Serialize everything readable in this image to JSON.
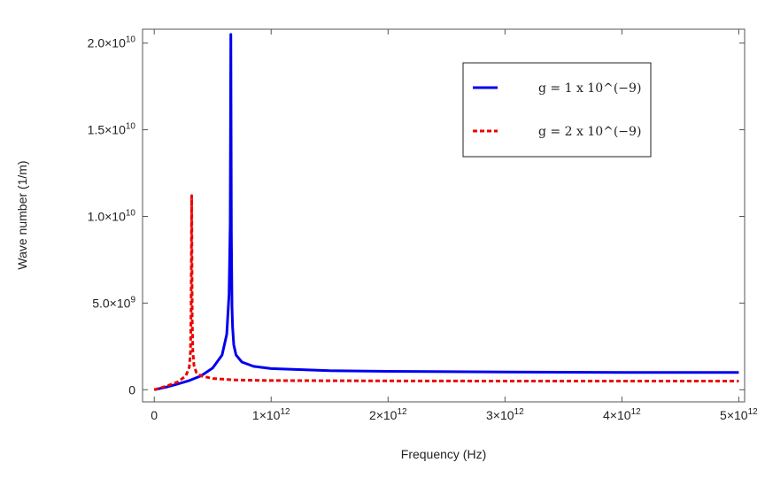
{
  "chart_data": {
    "type": "line",
    "xlabel": "Frequency (Hz)",
    "ylabel": "Wave number (1/m)",
    "xlim": [
      -100000000000.0,
      5050000000000.0
    ],
    "ylim": [
      -700000000.0,
      20800000000.0
    ],
    "x_ticks": [
      {
        "value": 0,
        "label": "0"
      },
      {
        "value": 1000000000000.0,
        "label": "1×10",
        "exp": "12"
      },
      {
        "value": 2000000000000.0,
        "label": "2×10",
        "exp": "12"
      },
      {
        "value": 3000000000000.0,
        "label": "3×10",
        "exp": "12"
      },
      {
        "value": 4000000000000.0,
        "label": "4×10",
        "exp": "12"
      },
      {
        "value": 5000000000000.0,
        "label": "5×10",
        "exp": "12"
      }
    ],
    "y_ticks": [
      {
        "value": 0,
        "label": "0"
      },
      {
        "value": 5000000000.0,
        "label": "5.0×10",
        "exp": "9"
      },
      {
        "value": 10000000000.0,
        "label": "1.0×10",
        "exp": "10"
      },
      {
        "value": 15000000000.0,
        "label": "1.5×10",
        "exp": "10"
      },
      {
        "value": 20000000000.0,
        "label": "2.0×10",
        "exp": "10"
      }
    ],
    "legend_position": "top-right",
    "series": [
      {
        "name": "g = 1 x 10^(−9)",
        "color": "#0000ee",
        "style": "solid",
        "x": [
          0,
          100000000000.0,
          200000000000.0,
          300000000000.0,
          400000000000.0,
          500000000000.0,
          580000000000.0,
          620000000000.0,
          640000000000.0,
          650000000000.0,
          655000000000.0,
          660000000000.0,
          665000000000.0,
          670000000000.0,
          680000000000.0,
          700000000000.0,
          750000000000.0,
          850000000000.0,
          1000000000000.0,
          1500000000000.0,
          2000000000000.0,
          3000000000000.0,
          4000000000000.0,
          5000000000000.0
        ],
        "values": [
          0,
          150000000.0,
          330000000.0,
          530000000.0,
          800000000.0,
          1250000000.0,
          2000000000.0,
          3200000000.0,
          5500000000.0,
          9500000000.0,
          20500000000.0,
          9000000000.0,
          4800000000.0,
          3600000000.0,
          2600000000.0,
          2000000000.0,
          1600000000.0,
          1350000000.0,
          1220000000.0,
          1100000000.0,
          1060000000.0,
          1020000000.0,
          1000000000.0,
          1000000000.0
        ]
      },
      {
        "name": "g = 2 x 10^(−9)",
        "color": "#ee0000",
        "style": "dashed",
        "x": [
          0,
          100000000000.0,
          200000000000.0,
          270000000000.0,
          300000000000.0,
          310000000000.0,
          315000000000.0,
          320000000000.0,
          325000000000.0,
          330000000000.0,
          340000000000.0,
          360000000000.0,
          400000000000.0,
          500000000000.0,
          700000000000.0,
          1000000000000.0,
          2000000000000.0,
          3000000000000.0,
          4000000000000.0,
          5000000000000.0
        ],
        "values": [
          0,
          200000000.0,
          450000000.0,
          800000000.0,
          1300000000.0,
          2200000000.0,
          4500000000.0,
          11200000000.0,
          4000000000.0,
          2200000000.0,
          1400000000.0,
          1000000000.0,
          800000000.0,
          650000000.0,
          560000000.0,
          530000000.0,
          510000000.0,
          500000000.0,
          500000000.0,
          500000000.0
        ]
      }
    ]
  }
}
